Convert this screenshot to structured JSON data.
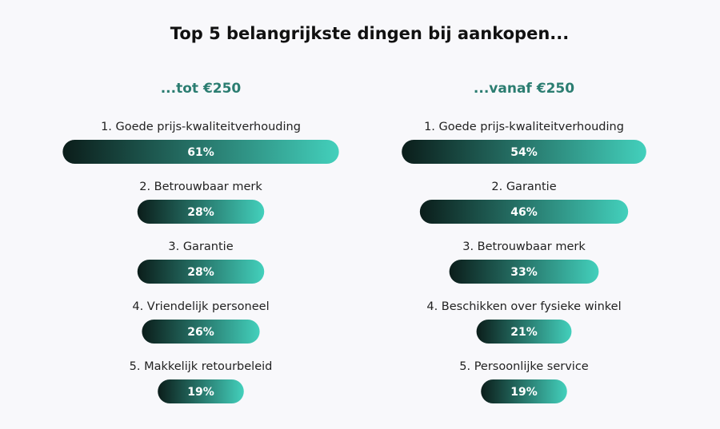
{
  "title": "Top 5 belangrijkste dingen bij aankopen...",
  "chart_data": [
    {
      "type": "bar",
      "title": "...tot €250",
      "title_color": "#2b7d71",
      "gradient": [
        "#0b1d1a",
        "#43d0bc"
      ],
      "categories": [
        "1. Goede prijs-kwaliteitverhouding",
        "2. Betrouwbaar merk",
        "3. Garantie",
        "4. Vriendelijk personeel",
        "5. Makkelijk retourbeleid"
      ],
      "values": [
        61,
        28,
        28,
        26,
        19
      ],
      "value_labels": [
        "61%",
        "28%",
        "28%",
        "26%",
        "19%"
      ]
    },
    {
      "type": "bar",
      "title": "...vanaf €250",
      "title_color": "#2b7d71",
      "gradient": [
        "#0b1d1a",
        "#43d0bc"
      ],
      "categories": [
        "1. Goede prijs-kwaliteitverhouding",
        "2. Garantie",
        "3. Betrouwbaar merk",
        "4. Beschikken over fysieke winkel",
        "5. Persoonlijke service"
      ],
      "values": [
        54,
        46,
        33,
        21,
        19
      ],
      "value_labels": [
        "54%",
        "46%",
        "33%",
        "21%",
        "19%"
      ]
    }
  ]
}
